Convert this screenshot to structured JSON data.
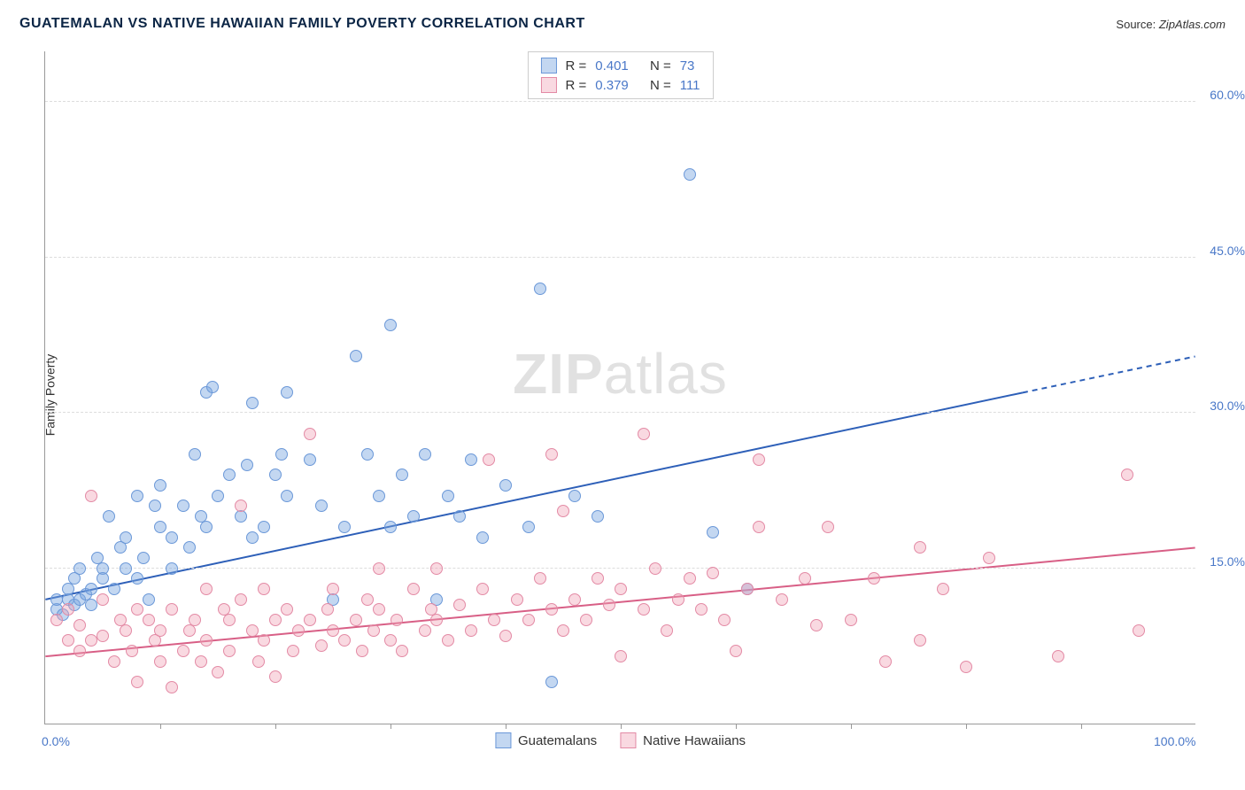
{
  "title": "GUATEMALAN VS NATIVE HAWAIIAN FAMILY POVERTY CORRELATION CHART",
  "source_label": "Source:",
  "source_value": "ZipAtlas.com",
  "ylabel": "Family Poverty",
  "watermark": {
    "zip": "ZIP",
    "atlas": "atlas"
  },
  "chart": {
    "type": "scatter",
    "xlim": [
      0,
      100
    ],
    "ylim": [
      0,
      65
    ],
    "x_ticks": [
      0,
      100
    ],
    "x_tick_labels": [
      "0.0%",
      "100.0%"
    ],
    "x_minor_ticks": [
      10,
      20,
      30,
      40,
      50,
      60,
      70,
      80,
      90
    ],
    "y_gridlines": [
      15,
      30,
      45,
      60
    ],
    "y_tick_labels": [
      "15.0%",
      "30.0%",
      "45.0%",
      "60.0%"
    ],
    "background_color": "#ffffff",
    "grid_color": "#dddddd",
    "axis_color": "#999999",
    "tick_label_color": "#4a78c8",
    "marker_radius": 7,
    "marker_stroke_width": 1,
    "series": [
      {
        "name": "Guatemalans",
        "label": "Guatemalans",
        "fill": "rgba(123,167,224,0.45)",
        "stroke": "#6b98d8",
        "line_color": "#2d5fb8",
        "line_width": 2,
        "R_label": "R =",
        "R": "0.401",
        "N_label": "N =",
        "N": "73",
        "trend": {
          "x1": 0,
          "y1": 12,
          "x2": 85,
          "y2": 32,
          "xd2": 100,
          "yd2": 35.5
        },
        "points": [
          [
            1,
            11
          ],
          [
            1,
            12
          ],
          [
            1.5,
            10.5
          ],
          [
            2,
            13
          ],
          [
            2,
            12
          ],
          [
            2.5,
            11.5
          ],
          [
            2.5,
            14
          ],
          [
            3,
            12
          ],
          [
            3,
            15
          ],
          [
            3.5,
            12.5
          ],
          [
            4,
            13
          ],
          [
            4,
            11.5
          ],
          [
            4.5,
            16
          ],
          [
            5,
            15
          ],
          [
            5,
            14
          ],
          [
            5.5,
            20
          ],
          [
            6,
            13
          ],
          [
            6.5,
            17
          ],
          [
            7,
            18
          ],
          [
            7,
            15
          ],
          [
            8,
            14
          ],
          [
            8,
            22
          ],
          [
            8.5,
            16
          ],
          [
            9,
            12
          ],
          [
            9.5,
            21
          ],
          [
            10,
            23
          ],
          [
            10,
            19
          ],
          [
            11,
            18
          ],
          [
            11,
            15
          ],
          [
            12,
            21
          ],
          [
            12.5,
            17
          ],
          [
            13,
            26
          ],
          [
            13.5,
            20
          ],
          [
            14,
            19
          ],
          [
            14,
            32
          ],
          [
            14.5,
            32.5
          ],
          [
            15,
            22
          ],
          [
            16,
            24
          ],
          [
            17,
            20
          ],
          [
            17.5,
            25
          ],
          [
            18,
            31
          ],
          [
            18,
            18
          ],
          [
            19,
            19
          ],
          [
            20,
            24
          ],
          [
            20.5,
            26
          ],
          [
            21,
            22
          ],
          [
            21,
            32
          ],
          [
            23,
            25.5
          ],
          [
            24,
            21
          ],
          [
            25,
            12
          ],
          [
            26,
            19
          ],
          [
            27,
            35.5
          ],
          [
            28,
            26
          ],
          [
            29,
            22
          ],
          [
            30,
            19
          ],
          [
            30,
            38.5
          ],
          [
            31,
            24
          ],
          [
            32,
            20
          ],
          [
            33,
            26
          ],
          [
            34,
            12
          ],
          [
            35,
            22
          ],
          [
            36,
            20
          ],
          [
            37,
            25.5
          ],
          [
            38,
            18
          ],
          [
            40,
            23
          ],
          [
            42,
            19
          ],
          [
            43,
            42
          ],
          [
            44,
            4
          ],
          [
            46,
            22
          ],
          [
            48,
            20
          ],
          [
            56,
            53
          ],
          [
            58,
            18.5
          ],
          [
            61,
            13
          ]
        ]
      },
      {
        "name": "Native Hawaiians",
        "label": "Native Hawaiians",
        "fill": "rgba(240,160,180,0.40)",
        "stroke": "#e38aa5",
        "line_color": "#d85f86",
        "line_width": 2,
        "R_label": "R =",
        "R": "0.379",
        "N_label": "N =",
        "N": "111",
        "trend": {
          "x1": 0,
          "y1": 6.5,
          "x2": 100,
          "y2": 17,
          "xd2": 100,
          "yd2": 17
        },
        "points": [
          [
            1,
            10
          ],
          [
            2,
            8
          ],
          [
            2,
            11
          ],
          [
            3,
            7
          ],
          [
            3,
            9.5
          ],
          [
            4,
            22
          ],
          [
            4,
            8
          ],
          [
            5,
            8.5
          ],
          [
            5,
            12
          ],
          [
            6,
            6
          ],
          [
            6.5,
            10
          ],
          [
            7,
            9
          ],
          [
            7.5,
            7
          ],
          [
            8,
            11
          ],
          [
            8,
            4
          ],
          [
            9,
            10
          ],
          [
            9.5,
            8
          ],
          [
            10,
            9
          ],
          [
            10,
            6
          ],
          [
            11,
            3.5
          ],
          [
            11,
            11
          ],
          [
            12,
            7
          ],
          [
            12.5,
            9
          ],
          [
            13,
            10
          ],
          [
            13.5,
            6
          ],
          [
            14,
            13
          ],
          [
            14,
            8
          ],
          [
            15,
            5
          ],
          [
            15.5,
            11
          ],
          [
            16,
            10
          ],
          [
            16,
            7
          ],
          [
            17,
            12
          ],
          [
            17,
            21
          ],
          [
            18,
            9
          ],
          [
            18.5,
            6
          ],
          [
            19,
            13
          ],
          [
            19,
            8
          ],
          [
            20,
            10
          ],
          [
            20,
            4.5
          ],
          [
            21,
            11
          ],
          [
            21.5,
            7
          ],
          [
            22,
            9
          ],
          [
            23,
            28
          ],
          [
            23,
            10
          ],
          [
            24,
            7.5
          ],
          [
            24.5,
            11
          ],
          [
            25,
            9
          ],
          [
            25,
            13
          ],
          [
            26,
            8
          ],
          [
            27,
            10
          ],
          [
            27.5,
            7
          ],
          [
            28,
            12
          ],
          [
            28.5,
            9
          ],
          [
            29,
            15
          ],
          [
            29,
            11
          ],
          [
            30,
            8
          ],
          [
            30.5,
            10
          ],
          [
            31,
            7
          ],
          [
            32,
            13
          ],
          [
            33,
            9
          ],
          [
            33.5,
            11
          ],
          [
            34,
            15
          ],
          [
            34,
            10
          ],
          [
            35,
            8
          ],
          [
            36,
            11.5
          ],
          [
            37,
            9
          ],
          [
            38,
            13
          ],
          [
            38.5,
            25.5
          ],
          [
            39,
            10
          ],
          [
            40,
            8.5
          ],
          [
            41,
            12
          ],
          [
            42,
            10
          ],
          [
            43,
            14
          ],
          [
            44,
            26
          ],
          [
            44,
            11
          ],
          [
            45,
            9
          ],
          [
            45,
            20.5
          ],
          [
            46,
            12
          ],
          [
            47,
            10
          ],
          [
            48,
            14
          ],
          [
            49,
            11.5
          ],
          [
            50,
            6.5
          ],
          [
            50,
            13
          ],
          [
            52,
            11
          ],
          [
            52,
            28
          ],
          [
            53,
            15
          ],
          [
            54,
            9
          ],
          [
            55,
            12
          ],
          [
            56,
            14
          ],
          [
            57,
            11
          ],
          [
            58,
            14.5
          ],
          [
            59,
            10
          ],
          [
            60,
            7
          ],
          [
            61,
            13
          ],
          [
            62,
            25.5
          ],
          [
            62,
            19
          ],
          [
            64,
            12
          ],
          [
            66,
            14
          ],
          [
            67,
            9.5
          ],
          [
            68,
            19
          ],
          [
            70,
            10
          ],
          [
            72,
            14
          ],
          [
            73,
            6
          ],
          [
            76,
            17
          ],
          [
            76,
            8
          ],
          [
            78,
            13
          ],
          [
            80,
            5.5
          ],
          [
            82,
            16
          ],
          [
            88,
            6.5
          ],
          [
            94,
            24
          ],
          [
            95,
            9
          ]
        ]
      }
    ]
  }
}
